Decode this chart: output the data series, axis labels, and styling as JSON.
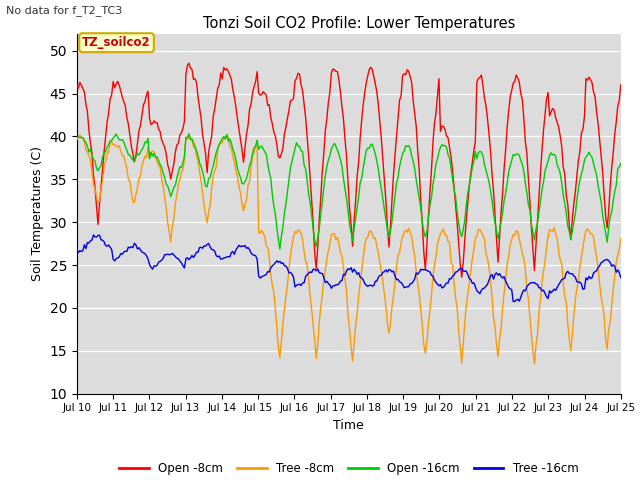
{
  "title": "Tonzi Soil CO2 Profile: Lower Temperatures",
  "subtitle": "No data for f_T2_TC3",
  "ylabel": "Soil Temperatures (C)",
  "xlabel": "Time",
  "ylim": [
    10,
    52
  ],
  "yticks": [
    10,
    15,
    20,
    25,
    30,
    35,
    40,
    45,
    50
  ],
  "bg_color": "#dcdcdc",
  "fig_color": "#ffffff",
  "annotation_text": "TZ_soilco2",
  "annotation_color": "#cc0000",
  "annotation_bg": "#ffffcc",
  "annotation_border": "#ccaa00",
  "legend_entries": [
    "Open -8cm",
    "Tree -8cm",
    "Open -16cm",
    "Tree -16cm"
  ],
  "legend_colors": [
    "#ff0000",
    "#ff9900",
    "#00cc00",
    "#0000ee"
  ],
  "x_tick_labels": [
    "Jul 10",
    "Jul 11",
    "Jul 12",
    "Jul 13",
    "Jul 14",
    "Jul 15",
    "Jul 16",
    "Jul 17",
    "Jul 18",
    "Jul 19",
    "Jul 20",
    "Jul 21",
    "Jul 22",
    "Jul 23",
    "Jul 24",
    "Jul 25"
  ],
  "days": 15
}
